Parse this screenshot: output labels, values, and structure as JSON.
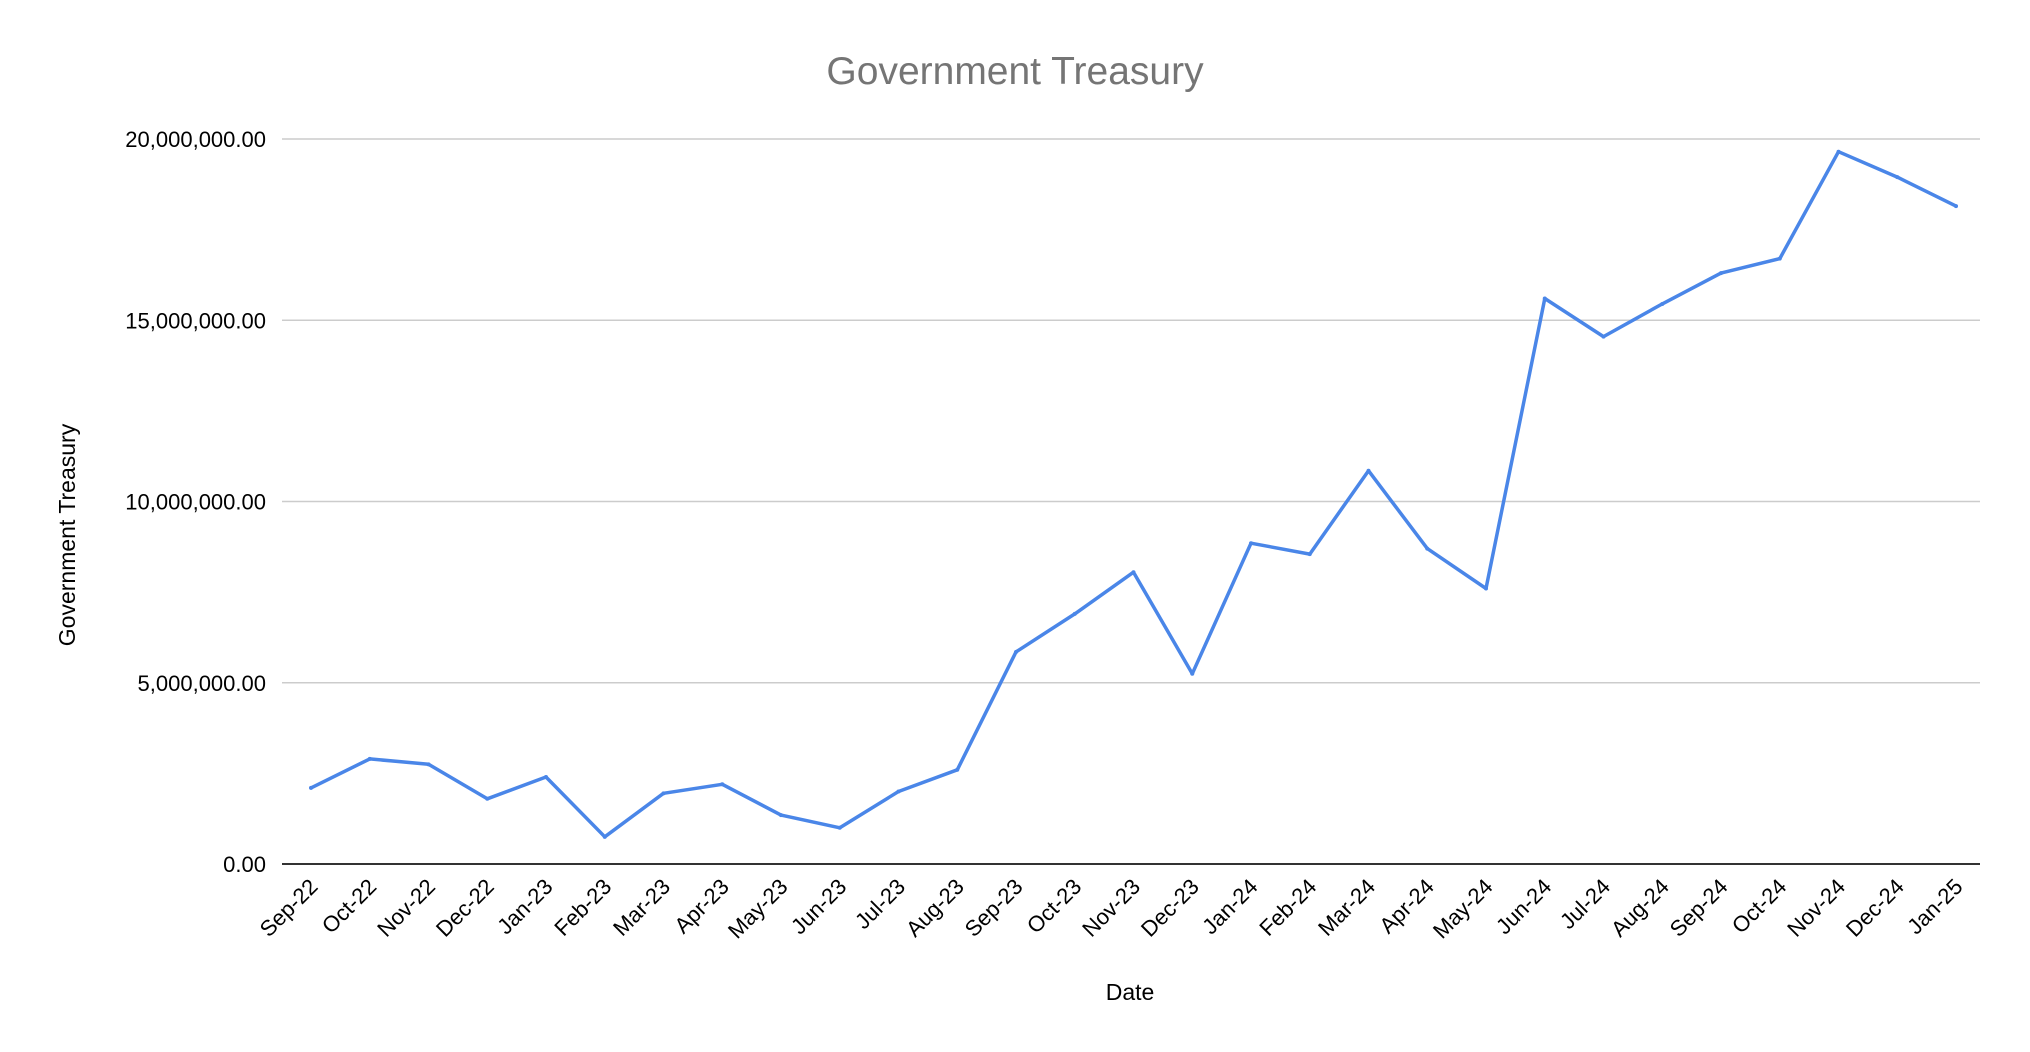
{
  "chart_data": {
    "type": "line",
    "title": "Government Treasury",
    "xlabel": "Date",
    "ylabel": "Government Treasury",
    "ylim": [
      0,
      20000000
    ],
    "y_ticks": [
      "0.00",
      "5,000,000.00",
      "10,000,000.00",
      "15,000,000.00",
      "20,000,000.00"
    ],
    "y_tick_values": [
      0,
      5000000,
      10000000,
      15000000,
      20000000
    ],
    "grid": true,
    "legend": "none",
    "line_color": "#4a86e8",
    "categories": [
      "Sep-22",
      "Oct-22",
      "Nov-22",
      "Dec-22",
      "Jan-23",
      "Feb-23",
      "Mar-23",
      "Apr-23",
      "May-23",
      "Jun-23",
      "Jul-23",
      "Aug-23",
      "Sep-23",
      "Oct-23",
      "Nov-23",
      "Dec-23",
      "Jan-24",
      "Feb-24",
      "Mar-24",
      "Apr-24",
      "May-24",
      "Jun-24",
      "Jul-24",
      "Aug-24",
      "Sep-24",
      "Oct-24",
      "Nov-24",
      "Dec-24",
      "Jan-25"
    ],
    "series": [
      {
        "values": [
          2100000,
          2900000,
          2750000,
          1800000,
          2400000,
          750000,
          1950000,
          2200000,
          1350000,
          1000000,
          2000000,
          2600000,
          5850000,
          6900000,
          8050000,
          5250000,
          8850000,
          8550000,
          10850000,
          8700000,
          7600000,
          15600000,
          14550000,
          15450000,
          16300000,
          16700000,
          19650000,
          18950000,
          18150000
        ]
      }
    ]
  }
}
